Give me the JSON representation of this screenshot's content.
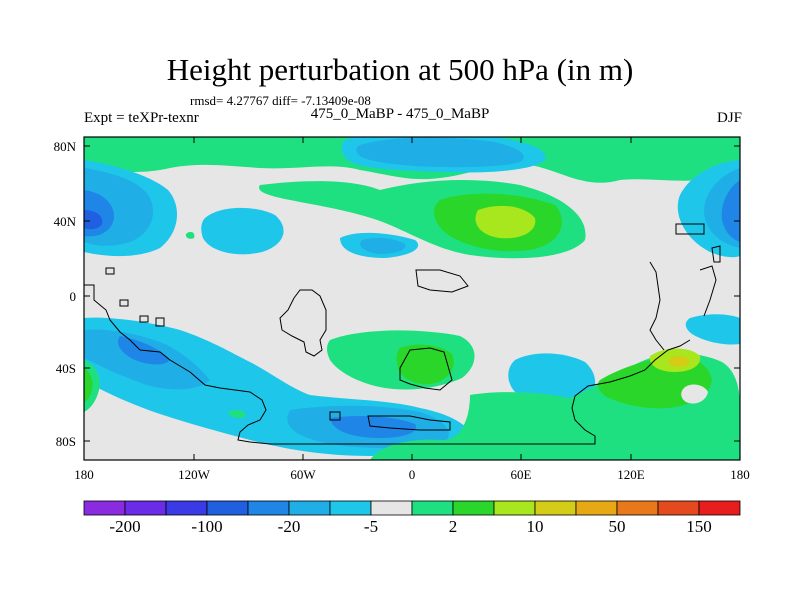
{
  "title": "Height perturbation at 500 hPa (in m)",
  "stats": "rmsd= 4.27767 diff= -7.13409e-08",
  "left_label": "Expt = teXPr-texnr",
  "subtitle": "475_0_MaBP - 475_0_MaBP",
  "season": "DJF",
  "y_ticks": [
    "80N",
    "40N",
    "0",
    "40S",
    "80S"
  ],
  "x_ticks": [
    "180",
    "120W",
    "60W",
    "0",
    "60E",
    "120E",
    "180"
  ],
  "colorbar": {
    "colors": [
      "#8a2be2",
      "#6a2ce6",
      "#3a3ae6",
      "#1f5fe0",
      "#1f86e8",
      "#20aee6",
      "#1ec7ea",
      "#e6e6e6",
      "#1ee080",
      "#2ad62a",
      "#a8e61e",
      "#d4cc16",
      "#e6a914",
      "#e8781a",
      "#e44a1e",
      "#e81e1e"
    ],
    "labels": [
      "-200",
      "-100",
      "-20",
      "-5",
      "2",
      "10",
      "50",
      "150"
    ]
  },
  "palette": {
    "background": "#e6e6e6",
    "light_blue": "#1ec7ea",
    "mid_blue": "#20aee6",
    "blue": "#1f86e8",
    "deep_blue": "#1f5fe0",
    "green": "#1ee080",
    "bright_green": "#2ad62a",
    "lime": "#a8e61e",
    "yellow": "#d4cc16"
  }
}
